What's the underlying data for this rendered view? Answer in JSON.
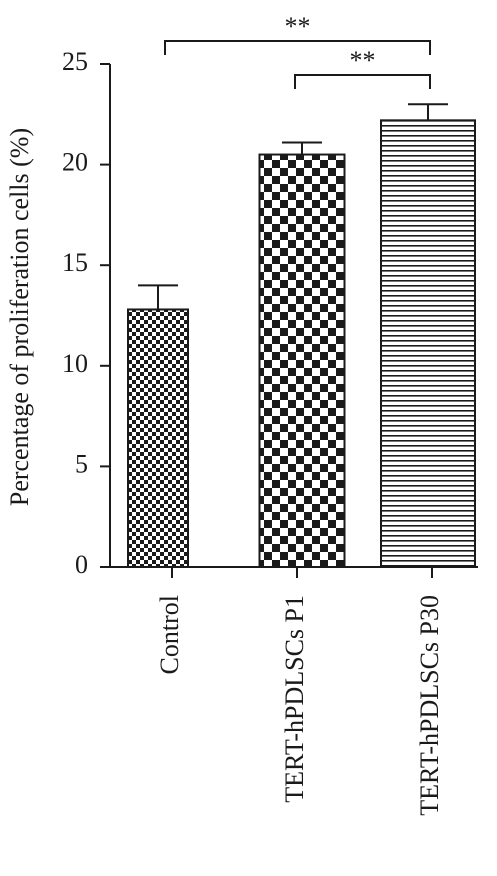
{
  "chart_data": {
    "type": "bar",
    "y_label": "Percentage of proliferation cells (%)",
    "categories": [
      "Control",
      "TERT-hPDLSCs P1",
      "TERT-hPDLSCs P30"
    ],
    "values": [
      12.8,
      20.5,
      22.2
    ],
    "errors": [
      1.2,
      0.6,
      0.8
    ],
    "patterns": [
      "checker-small",
      "checker-large",
      "horizontal-lines"
    ],
    "color": "#1a1a1a",
    "ylim": [
      0,
      25
    ],
    "yticks": [
      0,
      5,
      10,
      15,
      20,
      25
    ],
    "significance": [
      {
        "label": "**",
        "from": "Control",
        "to": "TERT-hPDLSCs P30"
      },
      {
        "label": "**",
        "from": "TERT-hPDLSCs P1",
        "to": "TERT-hPDLSCs P30"
      }
    ]
  }
}
